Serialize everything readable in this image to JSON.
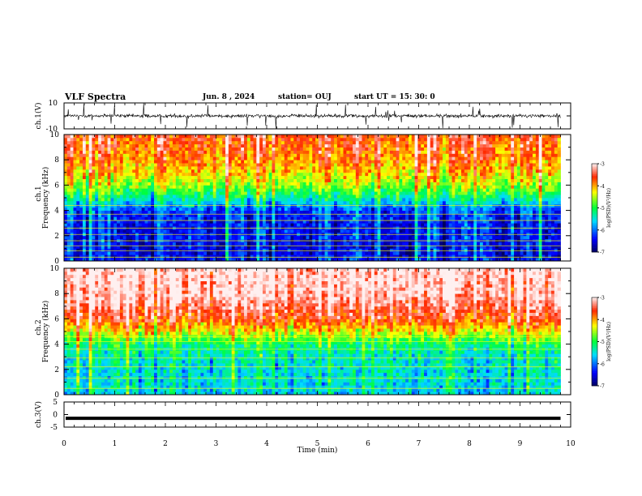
{
  "header": {
    "title": "VLF Spectra",
    "date": "Jun. 8 , 2024",
    "station": "station= OUJ",
    "start": "start UT = 15: 30: 0"
  },
  "colors": {
    "frame": "#000000",
    "cmap": [
      "#000060",
      "#0000ff",
      "#00ffff",
      "#00ff00",
      "#ffff00",
      "#ff0000",
      "#ffffff"
    ]
  },
  "chart_data": [
    {
      "type": "line",
      "name": "ch1-waveform",
      "ylabel": "ch.1(V)",
      "ylim": [
        -10,
        10
      ],
      "yticks": [
        "10",
        "-10"
      ],
      "xlim": [
        0,
        10
      ],
      "mean_level": 0,
      "amplitude_typical": 2,
      "spikes_upto": 10
    },
    {
      "type": "heatmap",
      "name": "ch1-spectrogram",
      "ylabel_line1": "ch.1",
      "ylabel_line2": "Frequency (kHz)",
      "ylim": [
        0,
        10
      ],
      "yticks": [
        "0",
        "2",
        "4",
        "6",
        "8",
        "10"
      ],
      "xlim": [
        0,
        9.8
      ],
      "colorbar": {
        "label": "log(PSD)(V²/Hz)",
        "range": [
          -7,
          -3
        ],
        "ticks": [
          "-3",
          "-4",
          "-5",
          "-6",
          "-7"
        ]
      },
      "profile_khz": [
        0,
        1,
        2,
        3,
        4,
        5,
        6,
        7,
        8,
        10
      ],
      "profile_level": [
        -6.4,
        -6.5,
        -6.4,
        -6.4,
        -6.2,
        -5.3,
        -4.6,
        -4.2,
        -3.9,
        -3.6
      ],
      "lines_khz": [
        0.3,
        0.8,
        1.2,
        1.6,
        2.1,
        2.6,
        3.2,
        3.7,
        4.4
      ]
    },
    {
      "type": "heatmap",
      "name": "ch2-spectrogram",
      "ylabel_line1": "ch.2",
      "ylabel_line2": "Frequency (kHz)",
      "ylim": [
        0,
        10
      ],
      "yticks": [
        "0",
        "2",
        "4",
        "6",
        "8",
        "10"
      ],
      "xlim": [
        0,
        9.8
      ],
      "colorbar": {
        "label": "log(PSD)(V²/Hz)",
        "range": [
          -7,
          -3
        ],
        "ticks": [
          "-3",
          "-4",
          "-5",
          "-6",
          "-7"
        ]
      },
      "profile_khz": [
        0,
        1,
        2,
        3,
        4,
        5,
        6,
        7,
        8,
        10
      ],
      "profile_level": [
        -5.6,
        -5.5,
        -5.5,
        -5.4,
        -5.1,
        -4.3,
        -3.6,
        -3.3,
        -3.1,
        -3.0
      ],
      "lines_khz": [
        0.5,
        1.3,
        2.2,
        2.9,
        3.6,
        4.2,
        4.6
      ]
    },
    {
      "type": "line",
      "name": "ch3-waveform",
      "ylabel": "ch.3(V)",
      "ylim": [
        -5,
        5
      ],
      "yticks": [
        "5",
        "0",
        "-5"
      ],
      "xlim": [
        0,
        10
      ],
      "constant_value": -1.5
    }
  ],
  "xaxis": {
    "label": "Time (min)",
    "range": [
      0,
      10
    ],
    "ticks": [
      "0",
      "1",
      "2",
      "3",
      "4",
      "5",
      "6",
      "7",
      "8",
      "9",
      "10"
    ]
  }
}
